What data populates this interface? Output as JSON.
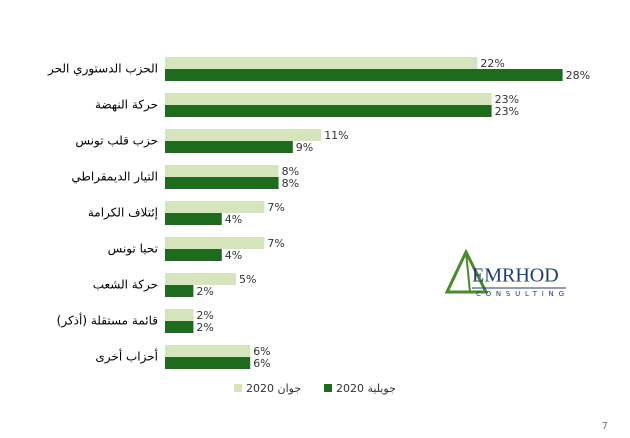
{
  "chart_data": {
    "type": "bar",
    "orientation": "horizontal",
    "categories": [
      "الحزب الدستوري الحر",
      "حركة النهضة",
      "حزب قلب تونس",
      "التيار الديمقراطي",
      "إئتلاف الكرامة",
      "تحيا تونس",
      "حركة الشعب",
      "قائمة مستقلة (أذكر)",
      "أحزاب أخرى"
    ],
    "series": [
      {
        "name": "جوان 2020",
        "color": "#d6e4bd",
        "values": [
          22,
          23,
          11,
          8,
          7,
          7,
          5,
          2,
          6
        ],
        "value_labels": [
          "22%",
          "23%",
          "11%",
          "8%",
          "7%",
          "7%",
          "5%",
          "2%",
          "6%"
        ]
      },
      {
        "name": "جويلية 2020",
        "color": "#1e6b1e",
        "values": [
          28,
          23,
          9,
          8,
          4,
          4,
          2,
          2,
          6
        ],
        "value_labels": [
          "28%",
          "23%",
          "9%",
          "8%",
          "4%",
          "4%",
          "2%",
          "2%",
          "6%"
        ]
      }
    ]
  },
  "logo": {
    "name": "EMRHOD",
    "subtitle": "CONSULTING"
  },
  "page_number": "7"
}
